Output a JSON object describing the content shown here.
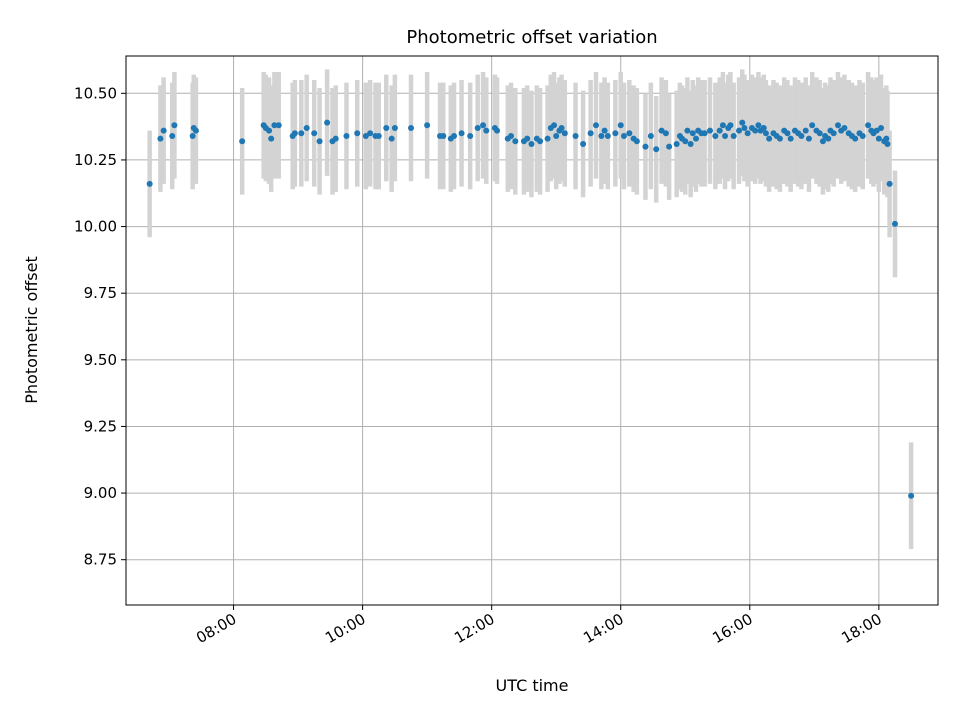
{
  "chart_data": {
    "type": "scatter",
    "title": "Photometric offset variation",
    "xlabel": "UTC time",
    "ylabel": "Photometric offset",
    "x_ticks": [
      "08:00",
      "10:00",
      "12:00",
      "14:00",
      "16:00",
      "18:00"
    ],
    "y_ticks": [
      "8.75",
      "9.00",
      "9.25",
      "9.50",
      "9.75",
      "10.00",
      "10.25",
      "10.50"
    ],
    "xlim": [
      "06:20",
      "18:55"
    ],
    "ylim": [
      8.58,
      10.64
    ],
    "grid": true,
    "colors": {
      "marker": "#1f77b4",
      "errorbar": "#d3d3d3",
      "grid": "#b0b0b0"
    },
    "series": [
      {
        "error": 0.2,
        "points": [
          [
            "06:42",
            10.16
          ],
          [
            "06:52",
            10.33
          ],
          [
            "06:55",
            10.36
          ],
          [
            "07:03",
            10.34
          ],
          [
            "07:05",
            10.38
          ],
          [
            "07:22",
            10.34
          ],
          [
            "07:23",
            10.37
          ],
          [
            "07:25",
            10.36
          ],
          [
            "08:08",
            10.32
          ],
          [
            "08:28",
            10.38
          ],
          [
            "08:30",
            10.37
          ],
          [
            "08:33",
            10.36
          ],
          [
            "08:35",
            10.33
          ],
          [
            "08:38",
            10.38
          ],
          [
            "08:42",
            10.38
          ],
          [
            "08:55",
            10.34
          ],
          [
            "08:57",
            10.35
          ],
          [
            "09:03",
            10.35
          ],
          [
            "09:08",
            10.37
          ],
          [
            "09:15",
            10.35
          ],
          [
            "09:20",
            10.32
          ],
          [
            "09:27",
            10.39
          ],
          [
            "09:32",
            10.32
          ],
          [
            "09:35",
            10.33
          ],
          [
            "09:45",
            10.34
          ],
          [
            "09:55",
            10.35
          ],
          [
            "10:03",
            10.34
          ],
          [
            "10:07",
            10.35
          ],
          [
            "10:12",
            10.34
          ],
          [
            "10:15",
            10.34
          ],
          [
            "10:22",
            10.37
          ],
          [
            "10:27",
            10.33
          ],
          [
            "10:30",
            10.37
          ],
          [
            "10:45",
            10.37
          ],
          [
            "11:00",
            10.38
          ],
          [
            "11:12",
            10.34
          ],
          [
            "11:15",
            10.34
          ],
          [
            "11:22",
            10.33
          ],
          [
            "11:25",
            10.34
          ],
          [
            "11:32",
            10.35
          ],
          [
            "11:40",
            10.34
          ],
          [
            "11:47",
            10.37
          ],
          [
            "11:52",
            10.38
          ],
          [
            "11:55",
            10.36
          ],
          [
            "12:03",
            10.37
          ],
          [
            "12:05",
            10.36
          ],
          [
            "12:15",
            10.33
          ],
          [
            "12:18",
            10.34
          ],
          [
            "12:22",
            10.32
          ],
          [
            "12:30",
            10.32
          ],
          [
            "12:33",
            10.33
          ],
          [
            "12:37",
            10.31
          ],
          [
            "12:42",
            10.33
          ],
          [
            "12:45",
            10.32
          ],
          [
            "12:52",
            10.33
          ],
          [
            "12:55",
            10.37
          ],
          [
            "12:58",
            10.38
          ],
          [
            "13:00",
            10.34
          ],
          [
            "13:03",
            10.36
          ],
          [
            "13:05",
            10.37
          ],
          [
            "13:08",
            10.35
          ],
          [
            "13:18",
            10.34
          ],
          [
            "13:25",
            10.31
          ],
          [
            "13:32",
            10.35
          ],
          [
            "13:37",
            10.38
          ],
          [
            "13:42",
            10.34
          ],
          [
            "13:45",
            10.36
          ],
          [
            "13:48",
            10.34
          ],
          [
            "13:55",
            10.35
          ],
          [
            "14:00",
            10.38
          ],
          [
            "14:03",
            10.34
          ],
          [
            "14:08",
            10.35
          ],
          [
            "14:12",
            10.33
          ],
          [
            "14:15",
            10.32
          ],
          [
            "14:23",
            10.3
          ],
          [
            "14:28",
            10.34
          ],
          [
            "14:33",
            10.29
          ],
          [
            "14:38",
            10.36
          ],
          [
            "14:42",
            10.35
          ],
          [
            "14:45",
            10.3
          ],
          [
            "14:52",
            10.31
          ],
          [
            "14:55",
            10.34
          ],
          [
            "14:57",
            10.33
          ],
          [
            "15:00",
            10.32
          ],
          [
            "15:02",
            10.36
          ],
          [
            "15:05",
            10.31
          ],
          [
            "15:07",
            10.35
          ],
          [
            "15:10",
            10.33
          ],
          [
            "15:12",
            10.36
          ],
          [
            "15:15",
            10.35
          ],
          [
            "15:18",
            10.35
          ],
          [
            "15:23",
            10.36
          ],
          [
            "15:28",
            10.34
          ],
          [
            "15:32",
            10.36
          ],
          [
            "15:35",
            10.38
          ],
          [
            "15:37",
            10.34
          ],
          [
            "15:40",
            10.37
          ],
          [
            "15:42",
            10.38
          ],
          [
            "15:45",
            10.34
          ],
          [
            "15:50",
            10.36
          ],
          [
            "15:53",
            10.39
          ],
          [
            "15:55",
            10.37
          ],
          [
            "15:58",
            10.35
          ],
          [
            "16:02",
            10.37
          ],
          [
            "16:05",
            10.36
          ],
          [
            "16:08",
            10.38
          ],
          [
            "16:10",
            10.36
          ],
          [
            "16:13",
            10.37
          ],
          [
            "16:15",
            10.35
          ],
          [
            "16:18",
            10.33
          ],
          [
            "16:22",
            10.35
          ],
          [
            "16:25",
            10.34
          ],
          [
            "16:28",
            10.33
          ],
          [
            "16:32",
            10.36
          ],
          [
            "16:35",
            10.35
          ],
          [
            "16:38",
            10.33
          ],
          [
            "16:42",
            10.36
          ],
          [
            "16:45",
            10.35
          ],
          [
            "16:48",
            10.34
          ],
          [
            "16:52",
            10.36
          ],
          [
            "16:55",
            10.33
          ],
          [
            "16:58",
            10.38
          ],
          [
            "17:02",
            10.36
          ],
          [
            "17:05",
            10.35
          ],
          [
            "17:08",
            10.32
          ],
          [
            "17:10",
            10.34
          ],
          [
            "17:13",
            10.33
          ],
          [
            "17:15",
            10.36
          ],
          [
            "17:18",
            10.35
          ],
          [
            "17:22",
            10.38
          ],
          [
            "17:25",
            10.36
          ],
          [
            "17:28",
            10.37
          ],
          [
            "17:32",
            10.35
          ],
          [
            "17:35",
            10.34
          ],
          [
            "17:38",
            10.33
          ],
          [
            "17:42",
            10.35
          ],
          [
            "17:45",
            10.34
          ],
          [
            "17:50",
            10.38
          ],
          [
            "17:53",
            10.36
          ],
          [
            "17:55",
            10.35
          ],
          [
            "17:58",
            10.36
          ],
          [
            "18:00",
            10.33
          ],
          [
            "18:02",
            10.37
          ],
          [
            "18:05",
            10.32
          ],
          [
            "18:07",
            10.33
          ],
          [
            "18:08",
            10.31
          ],
          [
            "18:10",
            10.16
          ],
          [
            "18:15",
            10.01
          ],
          [
            "18:30",
            8.99
          ]
        ]
      }
    ]
  }
}
